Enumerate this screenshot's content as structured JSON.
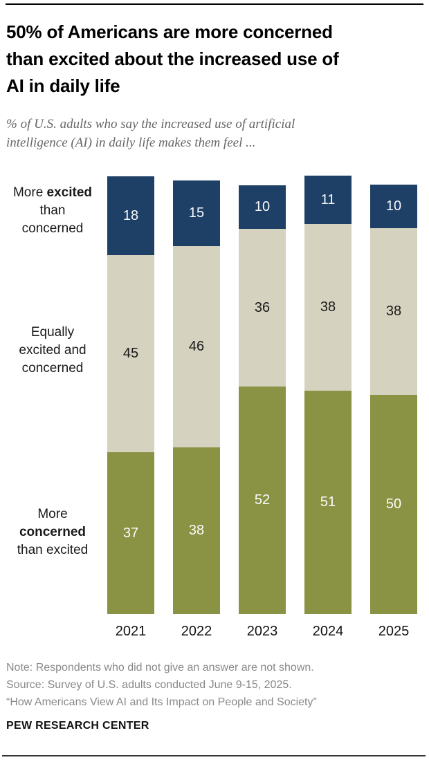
{
  "header": {
    "title_lines": [
      "50% of Americans are more concerned",
      "than excited about the increased use of",
      "AI in daily life"
    ],
    "subtitle_lines": [
      "% of U.S. adults who say the increased use of artificial",
      "intelligence (AI) in daily life makes them feel ..."
    ]
  },
  "chart_data": {
    "type": "bar",
    "stacked": true,
    "orientation": "vertical",
    "unit": "percent",
    "title": "50% of Americans are more concerned than excited about the increased use of AI in daily life",
    "subtitle": "% of U.S. adults who say the increased use of artificial intelligence (AI) in daily life makes them feel ...",
    "categories": [
      "2021",
      "2022",
      "2023",
      "2024",
      "2025"
    ],
    "series": [
      {
        "key": "more-excited",
        "name": "More excited than concerned",
        "label_lines": [
          "More **excited**",
          "than",
          "concerned"
        ],
        "color": "#1f4066",
        "text_color": "#f7f9fb",
        "values": [
          18,
          15,
          10,
          11,
          10
        ]
      },
      {
        "key": "equally",
        "name": "Equally excited and concerned",
        "label_lines": [
          "Equally",
          "excited and",
          "concerned"
        ],
        "color": "#d6d2c0",
        "text_color": "#1a1a1a",
        "values": [
          45,
          46,
          36,
          38,
          38
        ]
      },
      {
        "key": "more-concerned",
        "name": "More concerned than excited",
        "label_lines": [
          "More",
          "**concerned**",
          "than excited"
        ],
        "color": "#8a9243",
        "text_color": "#fdfdfd",
        "values": [
          37,
          38,
          52,
          51,
          50
        ]
      }
    ],
    "ylim": [
      0,
      100
    ],
    "grid": false,
    "legend_position": "left-row-labels",
    "value_labels": "inside-center"
  },
  "footer": {
    "note": "Note: Respondents who did not give an answer are not shown.",
    "source": "Source: Survey of U.S. adults conducted June 9-15, 2025.",
    "report": "“How Americans View AI and Its Impact on People and Society”",
    "brand": "PEW RESEARCH CENTER"
  }
}
